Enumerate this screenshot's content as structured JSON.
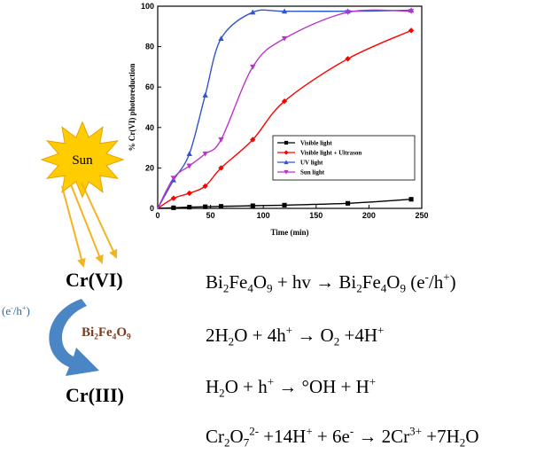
{
  "chart_data": {
    "type": "line",
    "title": "",
    "xlabel": "Time (min)",
    "ylabel": "% Cr(VI) photoreduction",
    "xlim": [
      0,
      250
    ],
    "ylim": [
      0,
      100
    ],
    "xticks": [
      0,
      50,
      100,
      150,
      200,
      250
    ],
    "yticks": [
      0,
      20,
      40,
      60,
      80,
      100
    ],
    "legend_position": "lower-right",
    "grid": false,
    "series": [
      {
        "name": "Visible light",
        "marker": "square",
        "color": "#000000",
        "x": [
          15,
          30,
          45,
          60,
          90,
          120,
          180,
          240
        ],
        "y": [
          0.3,
          0.6,
          0.8,
          1.0,
          1.3,
          1.6,
          2.5,
          4.5
        ]
      },
      {
        "name": "Visible light + Ultrason",
        "marker": "diamond",
        "color": "#ff0000",
        "x": [
          15,
          30,
          45,
          60,
          90,
          120,
          180,
          240
        ],
        "y": [
          5,
          7.5,
          11,
          20,
          34,
          53,
          74,
          88
        ]
      },
      {
        "name": "UV light",
        "marker": "triangle-up",
        "color": "#3355cc",
        "x": [
          15,
          30,
          45,
          60,
          90,
          120,
          180,
          240
        ],
        "y": [
          14,
          27,
          56,
          84,
          97,
          97.5,
          97.5,
          98
        ]
      },
      {
        "name": "Sun light",
        "marker": "triangle-down",
        "color": "#bb33cc",
        "x": [
          15,
          30,
          45,
          60,
          90,
          120,
          180,
          240
        ],
        "y": [
          15,
          21,
          27,
          34,
          70,
          84,
          97,
          97.5
        ]
      }
    ]
  },
  "scheme": {
    "sun_label": "Sun",
    "cr6": "Cr(VI)",
    "cr3": "Cr(III)",
    "catalyst": {
      "a": "Bi",
      "b": "2",
      "c": "Fe",
      "d": "4",
      "e": "O",
      "f": "9"
    },
    "charge_carriers": {
      "open": "(e",
      "minus": "-",
      "slash": "/h",
      "plus": "+",
      "close": ")"
    },
    "colors": {
      "sun_fill": "#ffcc00",
      "sun_stroke": "#e8a000",
      "arrow_sun": "#f2b424",
      "curve_arrow": "#4a86c6",
      "catalyst_text": "#7b3b1f",
      "carrier_text": "#2a6ab0"
    }
  },
  "equations": {
    "eq1": {
      "p1": "Bi",
      "s1": "2",
      "p2": "Fe",
      "s2": "4",
      "p3": "O",
      "s3": "9",
      "p4": " + hv → Bi",
      "s4": "2",
      "p5": "Fe",
      "s5": "4",
      "p6": "O",
      "s6": "9",
      "p7": " (e",
      "sup1": "-",
      "p8": "/h",
      "sup2": "+",
      "p9": ")"
    },
    "eq2": {
      "p1": "2H",
      "s1": "2",
      "p2": "O + 4h",
      "sup1": "+",
      "p3": " → O",
      "s2": "2",
      "p4": " +4H",
      "sup2": "+"
    },
    "eq3": {
      "p1": "H",
      "s1": "2",
      "p2": "O + h",
      "sup1": "+",
      "p3": " → °OH + H",
      "sup2": "+"
    },
    "eq4": {
      "p1": "Cr",
      "s1": "2",
      "p2": "O",
      "s2": "7",
      "sup1": "2-",
      "p3": " +14H",
      "sup2": "+",
      "p4": " + 6e",
      "sup3": "-",
      "p5": " → 2Cr",
      "sup4": "3+",
      "p6": " +7H",
      "s3": "2",
      "p7": "O"
    }
  }
}
